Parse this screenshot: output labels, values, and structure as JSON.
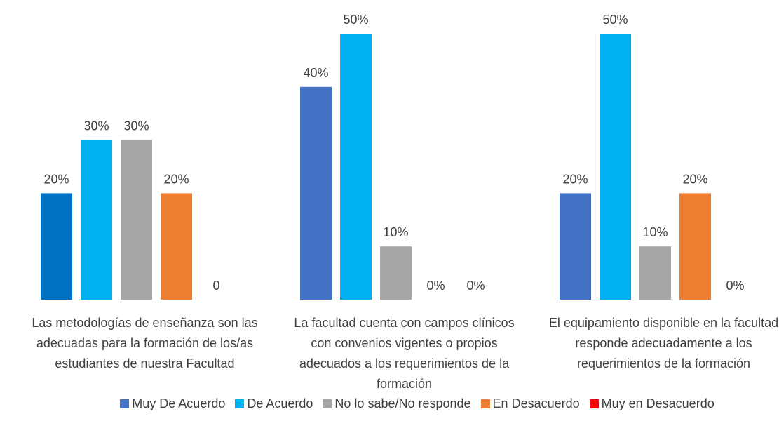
{
  "chart_data": {
    "type": "bar",
    "categories": [
      "Las metodologías de enseñanza son las adecuadas para la formación de los/as estudiantes de nuestra Facultad",
      "La facultad cuenta con campos clínicos con convenios vigentes o propios adecuados a los requerimientos de la formación",
      "El equipamiento disponible en la facultad responde adecuadamente a los requerimientos de la formación"
    ],
    "series": [
      {
        "name": "Muy De Acuerdo",
        "color": "#4472c4",
        "colors": [
          "#0070c0",
          "#4472c4",
          "#4472c4"
        ],
        "values": [
          20,
          40,
          20
        ],
        "value_labels": [
          "20%",
          "40%",
          "20%"
        ]
      },
      {
        "name": "De Acuerdo",
        "color": "#00b0f0",
        "values": [
          30,
          50,
          50
        ],
        "value_labels": [
          "30%",
          "50%",
          "50%"
        ]
      },
      {
        "name": "No lo sabe/No responde",
        "color": "#a5a5a5",
        "values": [
          30,
          10,
          10
        ],
        "value_labels": [
          "30%",
          "10%",
          "10%"
        ]
      },
      {
        "name": "En Desacuerdo",
        "color": "#ed7d31",
        "values": [
          20,
          0,
          20
        ],
        "value_labels": [
          "20%",
          "0%",
          "20%"
        ]
      },
      {
        "name": "Muy en Desacuerdo",
        "color": "#ff0000",
        "values": [
          0,
          0,
          0
        ],
        "value_labels": [
          "0",
          "0%",
          "0%"
        ]
      }
    ],
    "ylim": [
      0,
      50
    ],
    "grid": false,
    "legend": "bottom"
  }
}
